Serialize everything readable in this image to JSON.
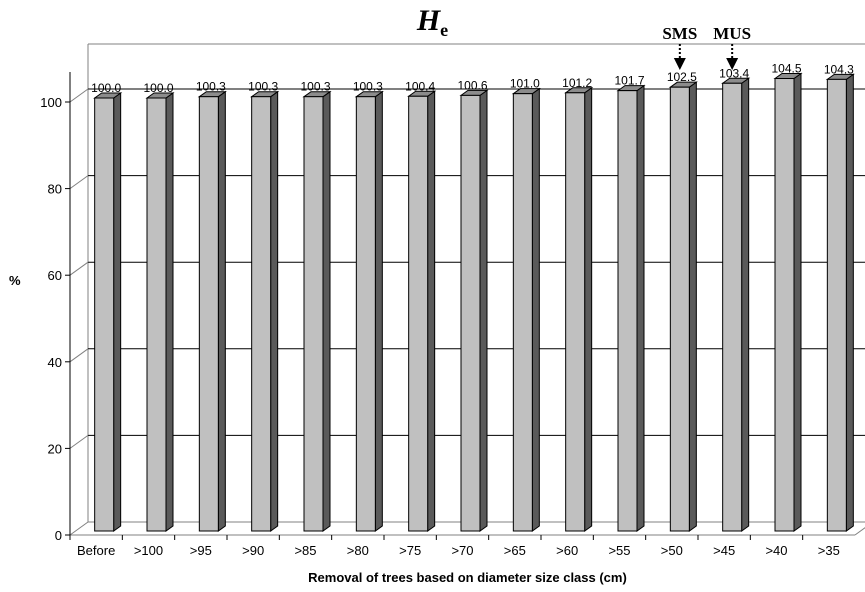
{
  "title": {
    "main": "H",
    "sub": "e"
  },
  "chart_data": {
    "type": "bar",
    "title": "He",
    "xlabel": "Removal of trees based on diameter size class (cm)",
    "ylabel": "%",
    "ylim": [
      0,
      100
    ],
    "yticks": [
      "0",
      "20",
      "40",
      "60",
      "80",
      "100"
    ],
    "grid": true,
    "categories": [
      "Before",
      ">100",
      ">95",
      ">90",
      ">85",
      ">80",
      ">75",
      ">70",
      ">65",
      ">60",
      ">55",
      ">50",
      ">45",
      ">40",
      ">35"
    ],
    "values": [
      100.0,
      100.0,
      100.3,
      100.3,
      100.3,
      100.3,
      100.4,
      100.6,
      101.0,
      101.2,
      101.7,
      102.5,
      103.4,
      104.5,
      104.3
    ],
    "value_labels": [
      "100.0",
      "100.0",
      "100.3",
      "100.3",
      "100.3",
      "100.3",
      "100.4",
      "100.6",
      "101.0",
      "101.2",
      "101.7",
      "102.5",
      "103.4",
      "104.5",
      "104.3"
    ],
    "annotations": [
      {
        "text": "SMS",
        "category": ">50"
      },
      {
        "text": "MUS",
        "category": ">45"
      }
    ],
    "colors": {
      "bar_front": "#c0c0c0",
      "bar_side": "#5a5a5a",
      "bar_top": "#8c8c8c",
      "grid": "#000000"
    }
  }
}
